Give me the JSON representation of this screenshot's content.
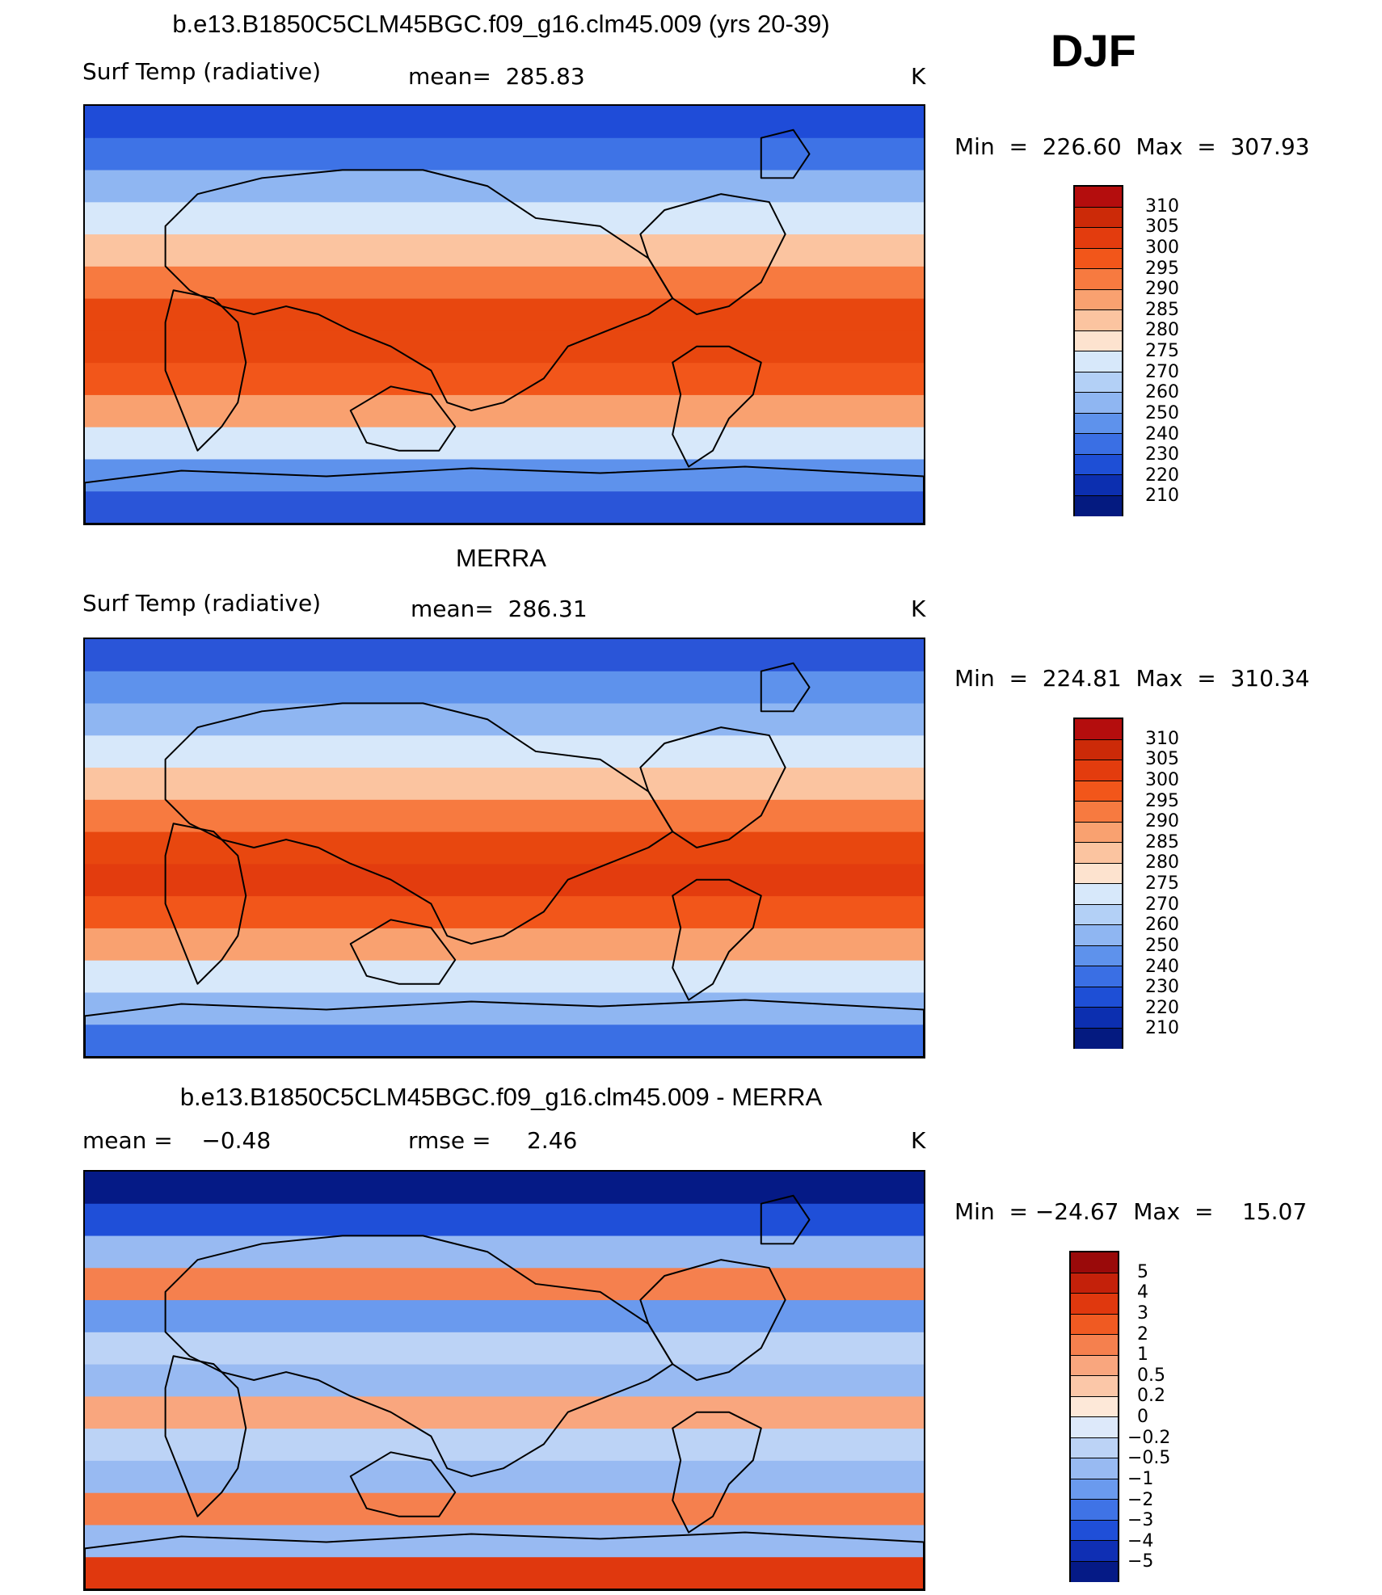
{
  "season": "DJF",
  "panels": [
    {
      "id": "model",
      "title": "b.e13.B1850C5CLM45BGC.f09_g16.clm45.009 (yrs 20-39)",
      "left_label": "Surf Temp (radiative)",
      "center_label": "mean=  285.83",
      "units": "K",
      "stats": "Min  =  226.60  Max  =  307.93",
      "colorbar_labels": [
        "310",
        "305",
        "300",
        "295",
        "290",
        "285",
        "280",
        "275",
        "270",
        "260",
        "250",
        "240",
        "230",
        "220",
        "210"
      ],
      "colorbar_colors": [
        "#b40d0d",
        "#cc2a08",
        "#e33c0e",
        "#f2561a",
        "#f77a40",
        "#f9a170",
        "#fbc4a0",
        "#fde3cf",
        "#d7e8fa",
        "#b3d0f6",
        "#8fb6f2",
        "#5e92ec",
        "#3a6fe4",
        "#1e4fd6",
        "#0c2fb0",
        "#041a80"
      ],
      "zones": [
        "#1f4cd8",
        "#3e73e6",
        "#8fb6f2",
        "#d7e8fa",
        "#fbc4a0",
        "#f77a40",
        "#e8470f",
        "#e8470f",
        "#f2561a",
        "#f9a170",
        "#d7e8fa",
        "#5e92ec",
        "#2a55d8"
      ]
    },
    {
      "id": "obs",
      "title": "MERRA",
      "left_label": "Surf Temp (radiative)",
      "center_label": "mean=  286.31",
      "units": "K",
      "stats": "Min  =  224.81  Max  =  310.34",
      "colorbar_labels": [
        "310",
        "305",
        "300",
        "295",
        "290",
        "285",
        "280",
        "275",
        "270",
        "260",
        "250",
        "240",
        "230",
        "220",
        "210"
      ],
      "colorbar_colors": [
        "#b40d0d",
        "#cc2a08",
        "#e33c0e",
        "#f2561a",
        "#f77a40",
        "#f9a170",
        "#fbc4a0",
        "#fde3cf",
        "#d7e8fa",
        "#b3d0f6",
        "#8fb6f2",
        "#5e92ec",
        "#3a6fe4",
        "#1e4fd6",
        "#0c2fb0",
        "#041a80"
      ],
      "zones": [
        "#2a55d8",
        "#5e92ec",
        "#8fb6f2",
        "#d7e8fa",
        "#fbc4a0",
        "#f77a40",
        "#e8470f",
        "#e33c0e",
        "#f2561a",
        "#f9a170",
        "#d7e8fa",
        "#8fb6f2",
        "#3a6fe4"
      ]
    },
    {
      "id": "diff",
      "title": "b.e13.B1850C5CLM45BGC.f09_g16.clm45.009 - MERRA",
      "left_label": "mean =    −0.48",
      "center_label": "rmse =     2.46",
      "units": "K",
      "stats": "Min  = −24.67  Max  =    15.07",
      "colorbar_labels": [
        "5",
        "4",
        "3",
        "2",
        "1",
        "0.5",
        "0.2",
        "0",
        "−0.2",
        "−0.5",
        "−1",
        "−2",
        "−3",
        "−4",
        "−5"
      ],
      "colorbar_colors": [
        "#9a0a0a",
        "#c4210a",
        "#e0380e",
        "#f05a22",
        "#f5804e",
        "#f9a67e",
        "#fbc7a8",
        "#fde8d8",
        "#dde9fa",
        "#bcd3f6",
        "#98baf2",
        "#6a9aee",
        "#3f73e6",
        "#1f4fd8",
        "#0f2fb4",
        "#051a86"
      ],
      "zones": [
        "#051a86",
        "#1f4fd8",
        "#98baf2",
        "#f5804e",
        "#6a9aee",
        "#bcd3f6",
        "#98baf2",
        "#f9a67e",
        "#bcd3f6",
        "#98baf2",
        "#f5804e",
        "#98baf2",
        "#e0380e"
      ]
    }
  ]
}
